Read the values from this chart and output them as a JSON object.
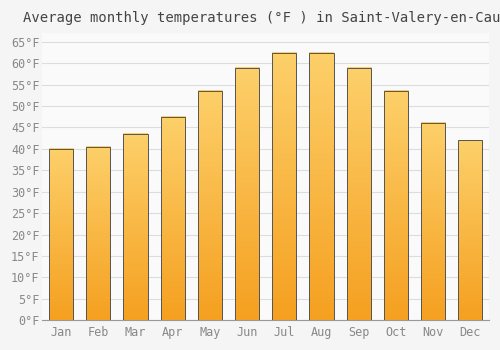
{
  "title": "Average monthly temperatures (°F ) in Saint-Valery-en-Caux",
  "months": [
    "Jan",
    "Feb",
    "Mar",
    "Apr",
    "May",
    "Jun",
    "Jul",
    "Aug",
    "Sep",
    "Oct",
    "Nov",
    "Dec"
  ],
  "values": [
    40.0,
    40.5,
    43.5,
    47.5,
    53.5,
    59.0,
    62.5,
    62.5,
    59.0,
    53.5,
    46.0,
    42.0
  ],
  "bar_color_top": "#FDD06A",
  "bar_color_bottom": "#F5A020",
  "bar_edge_color": "#555555",
  "background_color": "#F5F5F5",
  "plot_bg_color": "#FAFAFA",
  "grid_color": "#DDDDDD",
  "tick_color": "#888888",
  "title_color": "#444444",
  "ylim": [
    0,
    67
  ],
  "ytick_step": 5,
  "title_fontsize": 10,
  "tick_fontsize": 8.5,
  "figsize": [
    5.0,
    3.5
  ],
  "dpi": 100,
  "bar_width": 0.65
}
